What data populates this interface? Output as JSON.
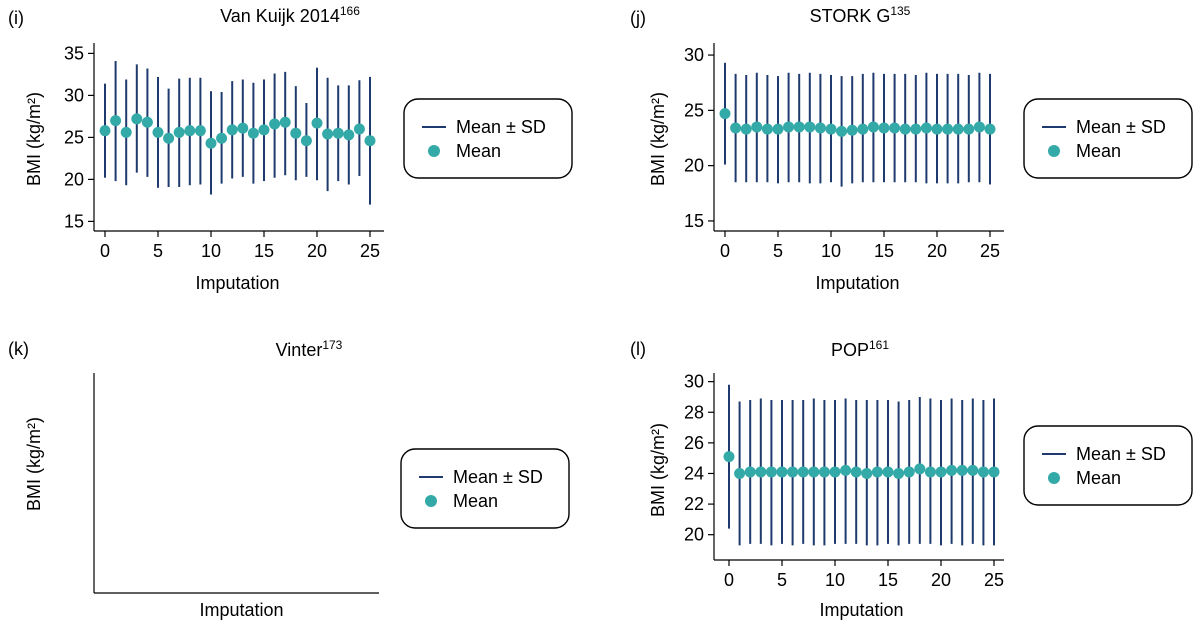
{
  "colors": {
    "sd_line": "#1f3a6e",
    "mean_marker": "#34aaa8",
    "axis": "#000000",
    "legend_border": "#000000"
  },
  "legend": {
    "line_label": "Mean ± SD",
    "marker_label": "Mean"
  },
  "chart_data": [
    {
      "panel": "(i)",
      "type": "errorbar",
      "title": "Van Kuijk 2014",
      "title_sup": "166",
      "xlabel": "Imputation",
      "ylabel": "BMI (kg/m²)",
      "xlim": [
        0,
        25
      ],
      "ylim": [
        13.5,
        36
      ],
      "xticks": [
        0,
        5,
        10,
        15,
        20,
        25
      ],
      "yticks": [
        15,
        20,
        25,
        30,
        35
      ],
      "legend_position": "right",
      "series": [
        {
          "name": "Mean",
          "x": [
            0,
            1,
            2,
            3,
            4,
            5,
            6,
            7,
            8,
            9,
            10,
            11,
            12,
            13,
            14,
            15,
            16,
            17,
            18,
            19,
            20,
            21,
            22,
            23,
            24,
            25
          ],
          "mean": [
            25.8,
            27.0,
            25.6,
            27.2,
            26.8,
            25.6,
            24.9,
            25.6,
            25.8,
            25.8,
            24.3,
            24.9,
            25.9,
            26.1,
            25.5,
            25.9,
            26.6,
            26.8,
            25.5,
            24.6,
            26.7,
            25.4,
            25.5,
            25.3,
            26.0,
            24.6
          ],
          "lower": [
            20.2,
            19.8,
            19.3,
            20.8,
            20.3,
            19.0,
            19.1,
            19.1,
            19.3,
            19.4,
            18.2,
            19.5,
            20.1,
            20.3,
            19.5,
            19.8,
            20.2,
            20.5,
            19.9,
            20.3,
            19.9,
            18.6,
            19.8,
            19.4,
            20.4,
            17.0
          ],
          "upper": [
            31.4,
            34.1,
            31.9,
            33.7,
            33.2,
            32.2,
            30.8,
            32.0,
            32.1,
            32.1,
            30.5,
            30.4,
            31.7,
            31.9,
            31.5,
            31.9,
            32.6,
            32.8,
            31.1,
            29.1,
            33.3,
            32.1,
            31.2,
            31.2,
            31.8,
            32.2
          ]
        }
      ]
    },
    {
      "panel": "(j)",
      "type": "errorbar",
      "title": "STORK G",
      "title_sup": "135",
      "xlabel": "Imputation",
      "ylabel": "BMI (kg/m²)",
      "xlim": [
        0,
        25
      ],
      "ylim": [
        14,
        31
      ],
      "xticks": [
        0,
        5,
        10,
        15,
        20,
        25
      ],
      "yticks": [
        15,
        20,
        25,
        30
      ],
      "legend_position": "right",
      "series": [
        {
          "name": "Mean",
          "x": [
            0,
            1,
            2,
            3,
            4,
            5,
            6,
            7,
            8,
            9,
            10,
            11,
            12,
            13,
            14,
            15,
            16,
            17,
            18,
            19,
            20,
            21,
            22,
            23,
            24,
            25
          ],
          "mean": [
            24.7,
            23.4,
            23.3,
            23.5,
            23.3,
            23.3,
            23.5,
            23.5,
            23.5,
            23.4,
            23.3,
            23.1,
            23.2,
            23.3,
            23.5,
            23.4,
            23.4,
            23.3,
            23.3,
            23.4,
            23.3,
            23.3,
            23.3,
            23.3,
            23.5,
            23.3
          ],
          "lower": [
            20.1,
            18.5,
            18.5,
            18.5,
            18.5,
            18.4,
            18.5,
            18.5,
            18.4,
            18.4,
            18.5,
            18.1,
            18.4,
            18.5,
            18.5,
            18.5,
            18.5,
            18.5,
            18.5,
            18.4,
            18.4,
            18.4,
            18.4,
            18.5,
            18.5,
            18.3
          ],
          "upper": [
            29.3,
            28.3,
            28.2,
            28.4,
            28.2,
            28.1,
            28.4,
            28.3,
            28.4,
            28.3,
            28.2,
            28.1,
            28.1,
            28.3,
            28.4,
            28.3,
            28.3,
            28.3,
            28.2,
            28.4,
            28.3,
            28.3,
            28.3,
            28.2,
            28.4,
            28.3
          ]
        }
      ]
    },
    {
      "panel": "(k)",
      "type": "errorbar",
      "title": "Vinter",
      "title_sup": "173",
      "xlabel": "Imputation",
      "ylabel": "BMI (kg/m²)",
      "legend_position": "right",
      "series": []
    },
    {
      "panel": "(l)",
      "type": "errorbar",
      "title": "POP",
      "title_sup": "161",
      "xlabel": "Imputation",
      "ylabel": "BMI (kg/m²)",
      "xlim": [
        0,
        25
      ],
      "ylim": [
        19,
        30.5
      ],
      "xticks": [
        0,
        5,
        10,
        15,
        20,
        25
      ],
      "yticks": [
        20,
        22,
        24,
        26,
        28,
        30
      ],
      "legend_position": "right",
      "series": [
        {
          "name": "Mean",
          "x": [
            0,
            1,
            2,
            3,
            4,
            5,
            6,
            7,
            8,
            9,
            10,
            11,
            12,
            13,
            14,
            15,
            16,
            17,
            18,
            19,
            20,
            21,
            22,
            23,
            24,
            25
          ],
          "mean": [
            25.1,
            24.0,
            24.1,
            24.1,
            24.1,
            24.1,
            24.1,
            24.1,
            24.1,
            24.1,
            24.1,
            24.2,
            24.1,
            24.0,
            24.1,
            24.1,
            24.0,
            24.1,
            24.3,
            24.1,
            24.1,
            24.2,
            24.2,
            24.2,
            24.1,
            24.1
          ],
          "lower": [
            20.4,
            19.3,
            19.4,
            19.4,
            19.3,
            19.4,
            19.3,
            19.4,
            19.3,
            19.3,
            19.4,
            19.4,
            19.4,
            19.3,
            19.3,
            19.4,
            19.3,
            19.4,
            19.4,
            19.4,
            19.3,
            19.4,
            19.3,
            19.4,
            19.3,
            19.3
          ],
          "upper": [
            29.8,
            28.7,
            28.8,
            28.9,
            28.8,
            28.8,
            28.8,
            28.8,
            28.9,
            28.8,
            28.8,
            28.9,
            28.8,
            28.8,
            28.8,
            28.8,
            28.7,
            28.8,
            29.0,
            28.9,
            28.8,
            28.9,
            28.8,
            28.9,
            28.8,
            28.9
          ]
        }
      ]
    }
  ]
}
